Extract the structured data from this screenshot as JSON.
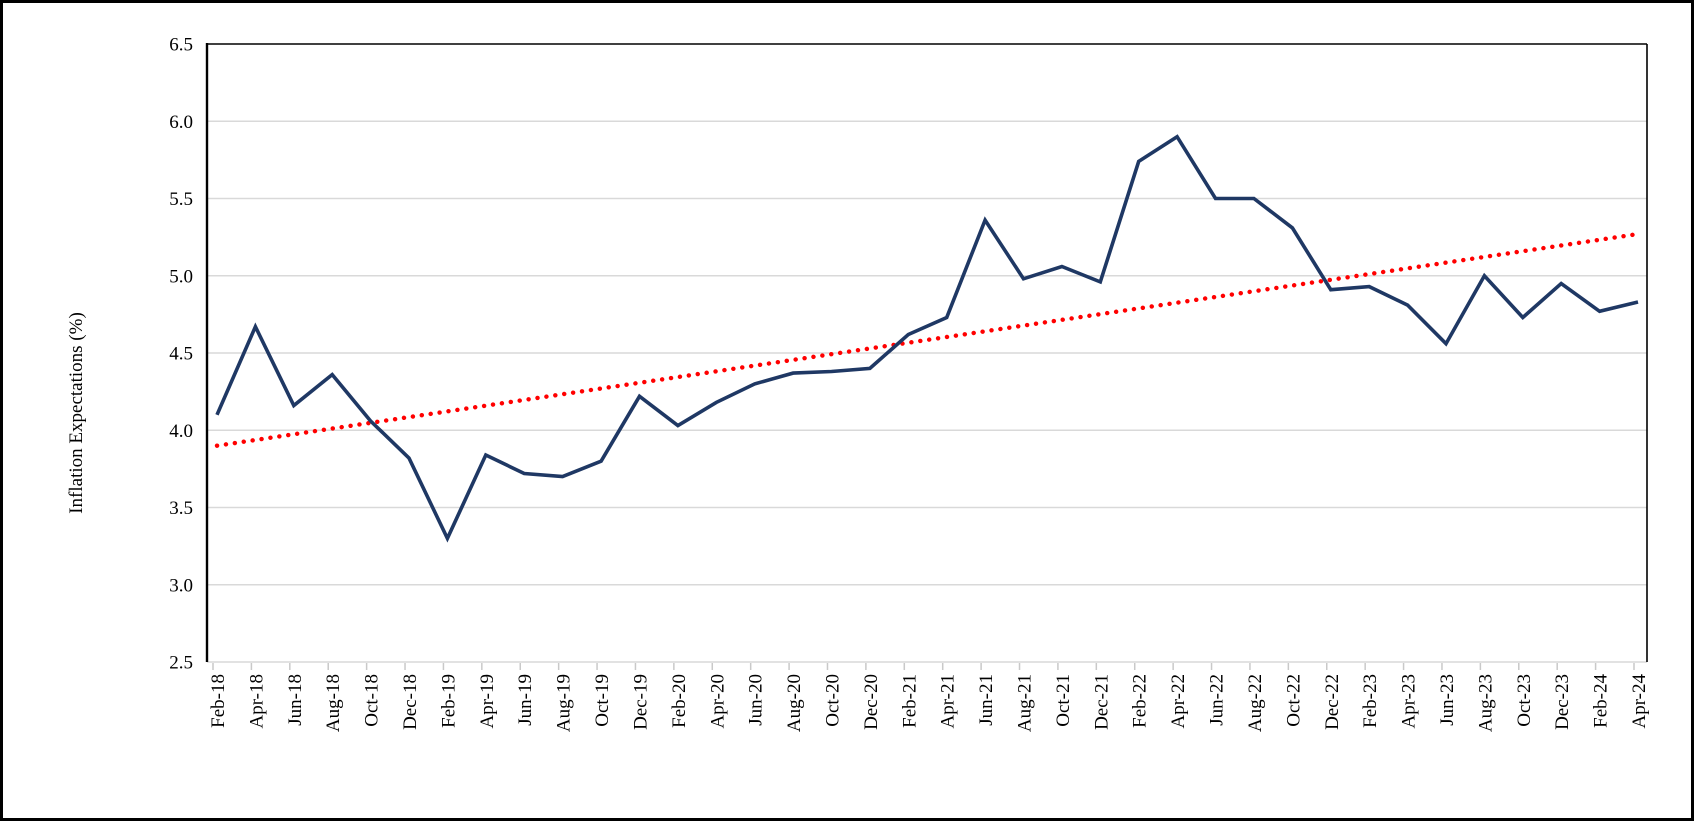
{
  "window": {
    "background_color": "#ffffff",
    "frame_color": "#000000"
  },
  "chart_data": {
    "type": "line",
    "title": "",
    "xlabel": "",
    "ylabel": "Inflation Expectations (%)",
    "ylim": [
      2.5,
      6.5
    ],
    "ytick_step": 0.5,
    "yticks": [
      2.5,
      3.0,
      3.5,
      4.0,
      4.5,
      5.0,
      5.5,
      6.0,
      6.5
    ],
    "grid": "horizontal",
    "legend_position": "none",
    "categories": [
      "Feb-18",
      "Apr-18",
      "Jun-18",
      "Aug-18",
      "Oct-18",
      "Dec-18",
      "Feb-19",
      "Apr-19",
      "Jun-19",
      "Aug-19",
      "Oct-19",
      "Dec-19",
      "Feb-20",
      "Apr-20",
      "Jun-20",
      "Aug-20",
      "Oct-20",
      "Dec-20",
      "Feb-21",
      "Apr-21",
      "Jun-21",
      "Aug-21",
      "Oct-21",
      "Dec-21",
      "Feb-22",
      "Apr-22",
      "Jun-22",
      "Aug-22",
      "Oct-22",
      "Dec-22",
      "Feb-23",
      "Apr-23",
      "Jun-23",
      "Aug-23",
      "Oct-23",
      "Dec-23",
      "Feb-24",
      "Apr-24"
    ],
    "series": [
      {
        "name": "Inflation Expectations",
        "kind": "data-line",
        "color": "#1f3864",
        "line_style": "solid",
        "values": [
          4.1,
          4.67,
          4.16,
          4.36,
          4.06,
          3.82,
          3.3,
          3.84,
          3.72,
          3.7,
          3.8,
          4.22,
          4.03,
          4.18,
          4.3,
          4.37,
          4.38,
          4.4,
          4.62,
          4.73,
          5.36,
          4.98,
          5.06,
          4.96,
          5.74,
          5.9,
          5.5,
          5.5,
          5.31,
          4.91,
          4.93,
          4.81,
          4.56,
          5.0,
          4.73,
          4.95,
          4.77,
          4.83
        ]
      },
      {
        "name": "Linear trend",
        "kind": "trend-line",
        "color": "#ff0000",
        "line_style": "dotted",
        "start_value": 3.9,
        "end_value": 5.27
      }
    ],
    "colors": {
      "gridline": "#d9d9d9",
      "axis_line": "#000000",
      "category_axis_line": "#d9d9d9",
      "tick_mark": "#c9c9c9",
      "label_text": "#000000"
    }
  }
}
